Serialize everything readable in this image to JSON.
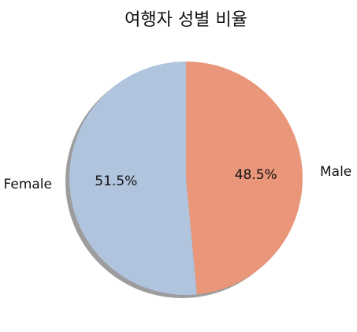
{
  "chart_data": {
    "type": "pie",
    "title": "여행자 성별 비율",
    "slices": [
      {
        "label": "Female",
        "percent_label": "51.5%",
        "value": 51.5,
        "color": "#b0c4de"
      },
      {
        "label": "Male",
        "percent_label": "48.5%",
        "value": 48.5,
        "color": "#e9967a"
      }
    ],
    "start_angle_deg": 90,
    "direction": "counterclockwise",
    "shadow": true,
    "legend": "none"
  }
}
